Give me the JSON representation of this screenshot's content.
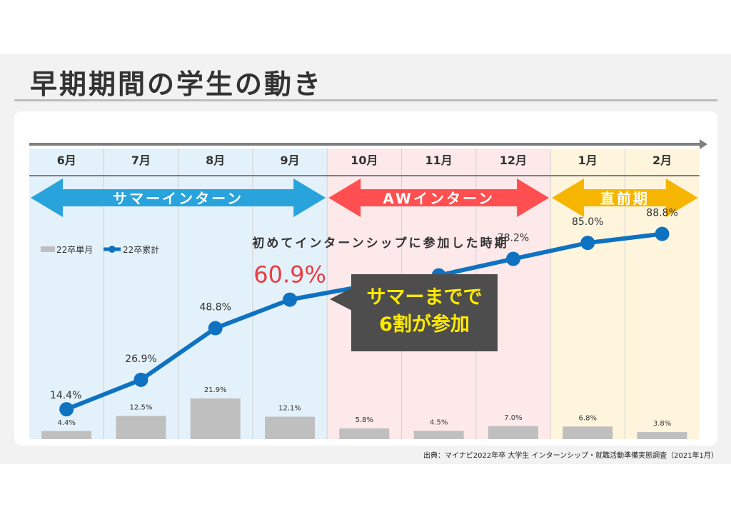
{
  "title": "早期期間の学生の動き",
  "source": "出典：マイナビ2022年卒 大学生 インターンシップ・就職活動準備実態調査（2021年1月）",
  "phases": [
    {
      "label": "サマーインターン",
      "color": "#29a3dc",
      "bg": "#e3f1fa"
    },
    {
      "label": "AWインターン",
      "color": "#ff4f50",
      "bg": "#fde9ea"
    },
    {
      "label": "直前期",
      "color": "#f5b500",
      "bg": "#fff5dd"
    }
  ],
  "callout": {
    "line1": "サマーまでで",
    "line2": "6割が参加"
  },
  "colors": {
    "line": "#0f72c1",
    "bar": "#bfbfbf",
    "highlight": "#e83d42",
    "callout_text": "#ffea00"
  },
  "chart_data": {
    "type": "bar",
    "title": "初めてインターンシップに参加した時期",
    "categories": [
      "6月",
      "7月",
      "8月",
      "9月",
      "10月",
      "11月",
      "12月",
      "1月",
      "2月"
    ],
    "legend_position": "top-left",
    "series": [
      {
        "name": "22卒単月",
        "type": "bar",
        "values": [
          4.4,
          12.5,
          21.9,
          12.1,
          5.8,
          4.5,
          7.0,
          6.8,
          3.8
        ],
        "labels": [
          "4.4%",
          "12.5%",
          "21.9%",
          "12.1%",
          "5.8%",
          "4.5%",
          "7.0%",
          "6.8%",
          "3.8%"
        ]
      },
      {
        "name": "22卒累計",
        "type": "line",
        "values": [
          14.4,
          26.9,
          48.8,
          60.9,
          66.7,
          71.2,
          78.2,
          85.0,
          88.8
        ],
        "labels": [
          "14.4%",
          "26.9%",
          "48.8%",
          "60.9%",
          "",
          "",
          "78.2%",
          "85.0%",
          "88.8%"
        ]
      }
    ],
    "highlight_index": 3
  }
}
